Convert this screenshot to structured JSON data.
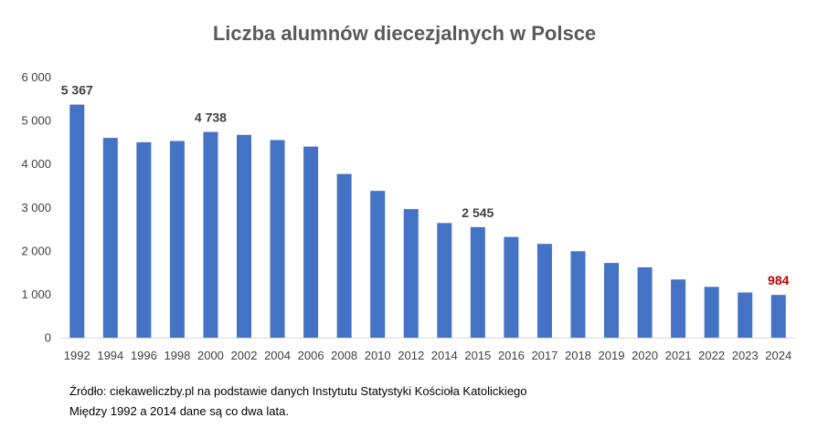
{
  "chart_data": {
    "type": "bar",
    "title": "Liczba alumnów diecezjalnych w Polsce",
    "xlabel": "",
    "ylabel": "",
    "ylim": [
      0,
      6000
    ],
    "yticks": [
      0,
      1000,
      2000,
      3000,
      4000,
      5000,
      6000
    ],
    "ytick_labels": [
      "0",
      "1 000",
      "2 000",
      "3 000",
      "4 000",
      "5 000",
      "6 000"
    ],
    "grid": false,
    "legend": "none",
    "bar_color": "#4472C4",
    "highlight_color": "#C00000",
    "label_color": "#404040",
    "categories": [
      "1992",
      "1994",
      "1996",
      "1998",
      "2000",
      "2002",
      "2004",
      "2006",
      "2008",
      "2010",
      "2012",
      "2014",
      "2015",
      "2016",
      "2017",
      "2018",
      "2019",
      "2020",
      "2021",
      "2022",
      "2023",
      "2024"
    ],
    "values": [
      5367,
      4600,
      4500,
      4530,
      4738,
      4670,
      4550,
      4400,
      3770,
      3380,
      2960,
      2640,
      2545,
      2320,
      2160,
      1990,
      1720,
      1620,
      1340,
      1170,
      1040,
      984
    ],
    "data_labels": [
      {
        "index": 0,
        "text": "5 367",
        "highlight": false
      },
      {
        "index": 4,
        "text": "4 738",
        "highlight": false
      },
      {
        "index": 12,
        "text": "2 545",
        "highlight": false
      },
      {
        "index": 21,
        "text": "984",
        "highlight": true
      }
    ]
  },
  "footer": {
    "source": "Źródło: ciekaweliczby.pl na podstawie danych Instytutu Statystyki Kościoła Katolickiego",
    "note": "Między 1992 a 2014 dane są co dwa lata."
  }
}
